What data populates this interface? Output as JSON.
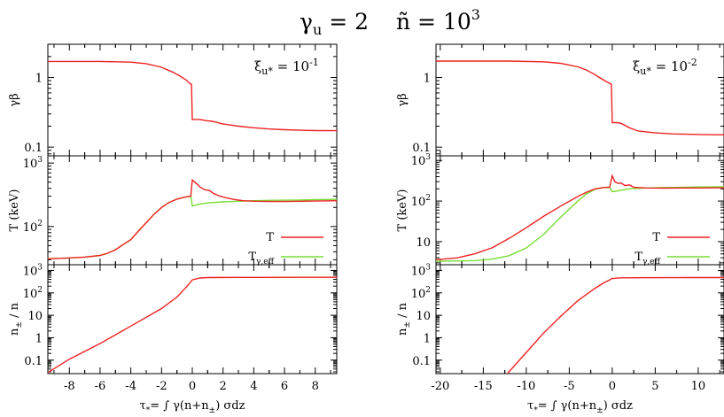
{
  "figure": {
    "title_gamma": "γ",
    "title_gamma_sub": "u",
    "title_gamma_val": " = 2",
    "title_n": "ñ",
    "title_n_val": " = 10",
    "title_n_exp": "3"
  },
  "colors": {
    "T": "#ee2222",
    "Teff": "#77dd33",
    "axis": "#000000"
  },
  "chart_data": [
    {
      "type": "line",
      "panel": "left",
      "annotation": {
        "base": "ξ",
        "sub": "u*",
        "eq": " = 10",
        "exp": "-1"
      },
      "xlim": [
        -9.4,
        9.4
      ],
      "xticks": [
        -8,
        -6,
        -4,
        -2,
        0,
        2,
        4,
        6,
        8
      ],
      "xtick_labels": [
        "-8",
        "-6",
        "-4",
        "-2",
        "0",
        "2",
        "4",
        "6",
        "8"
      ],
      "xlabel": {
        "pre": "τ",
        "pre_sub": "*",
        "mid": "= ∫ γ(n+n",
        "mid_sub": "±",
        "post": ") σdz"
      },
      "subplots": [
        {
          "ylabel": "γβ",
          "yscale": "log",
          "ylim": [
            0.075,
            3.0
          ],
          "yticks": [
            {
              "v": 1,
              "label": "1"
            },
            {
              "v": 0.1,
              "label": "0.1"
            }
          ],
          "series": [
            {
              "name": "γβ",
              "color": "#ee2222",
              "x": [
                -9.4,
                -6,
                -4,
                -3,
                -2,
                -1.3,
                -0.8,
                -0.4,
                -0.1,
                -0.05,
                0,
                0.5,
                0.9,
                1.3,
                2,
                3,
                4,
                5,
                6,
                7,
                8,
                9.4
              ],
              "y": [
                1.7,
                1.7,
                1.66,
                1.58,
                1.4,
                1.2,
                1.05,
                0.92,
                0.8,
                0.8,
                0.25,
                0.25,
                0.24,
                0.235,
                0.215,
                0.2,
                0.19,
                0.182,
                0.178,
                0.175,
                0.173,
                0.172
              ]
            }
          ]
        },
        {
          "ylabel": "T (keV)",
          "yscale": "log",
          "ylim": [
            25,
            1300
          ],
          "yticks": [
            {
              "v": 1000,
              "label": "10",
              "sup": "3"
            },
            {
              "v": 100,
              "label": "10",
              "sup": "2"
            }
          ],
          "legend": [
            {
              "label": "T",
              "color": "#ee2222"
            },
            {
              "label": "T",
              "sub": "γ,eff",
              "color": "#77dd33"
            }
          ],
          "series": [
            {
              "name": "T",
              "color": "#ee2222",
              "x": [
                -9.4,
                -8,
                -7,
                -6,
                -5.5,
                -5,
                -4.5,
                -4,
                -3.5,
                -3,
                -2.5,
                -2,
                -1.5,
                -1,
                -0.5,
                -0.1,
                0,
                0.3,
                0.5,
                0.8,
                1.1,
                1.4,
                1.8,
                2.3,
                2.8,
                3.3,
                4,
                5,
                6,
                7,
                8,
                9.4
              ],
              "y": [
                31,
                32,
                33,
                35,
                38,
                43,
                52,
                62,
                85,
                115,
                155,
                200,
                240,
                270,
                290,
                300,
                540,
                470,
                420,
                380,
                370,
                330,
                300,
                280,
                265,
                255,
                250,
                248,
                248,
                250,
                252,
                255
              ]
            },
            {
              "name": "T_γ,eff",
              "color": "#77dd33",
              "x": [
                -9.4,
                -8,
                -7,
                -6,
                -5.5,
                -5,
                -4.5,
                -4,
                -3.5,
                -3,
                -2.5,
                -2,
                -1.5,
                -1,
                -0.5,
                -0.1,
                0,
                0.5,
                1,
                2,
                3,
                4,
                5,
                6,
                7,
                8,
                9.4
              ],
              "y": [
                31,
                32,
                33,
                35,
                38,
                43,
                52,
                62,
                85,
                115,
                155,
                200,
                240,
                270,
                290,
                300,
                210,
                225,
                235,
                245,
                250,
                255,
                258,
                260,
                262,
                265,
                268
              ]
            }
          ]
        },
        {
          "ylabel": "n± / n",
          "yscale": "log",
          "ylim": [
            0.025,
            1800
          ],
          "yticks": [
            {
              "v": 1000,
              "label": "10",
              "sup": "3"
            },
            {
              "v": 100,
              "label": "10",
              "sup": "2"
            },
            {
              "v": 10,
              "label": "10"
            },
            {
              "v": 1,
              "label": "1"
            },
            {
              "v": 0.1,
              "label": "0.1"
            }
          ],
          "series": [
            {
              "name": "n±/n",
              "color": "#ee2222",
              "x": [
                -9.4,
                -8,
                -6,
                -4,
                -2,
                -1,
                -0.3,
                0,
                0.5,
                1,
                3,
                5,
                7,
                9.4
              ],
              "y": [
                0.028,
                0.11,
                0.55,
                3.3,
                20,
                65,
                210,
                380,
                460,
                480,
                490,
                492,
                493,
                495
              ]
            }
          ]
        }
      ]
    },
    {
      "type": "line",
      "panel": "right",
      "annotation": {
        "base": "ξ",
        "sub": "u*",
        "eq": " = 10",
        "exp": "-2"
      },
      "xlim": [
        -20.5,
        13
      ],
      "xticks": [
        -20,
        -15,
        -10,
        -5,
        0,
        5,
        10
      ],
      "xtick_labels": [
        "-20",
        "-15",
        "-10",
        "-5",
        "0",
        "5",
        "10"
      ],
      "xlabel": {
        "pre": "τ",
        "pre_sub": "*",
        "mid": "= ∫ γ(n+n",
        "mid_sub": "±",
        "post": ") σdz"
      },
      "subplots": [
        {
          "ylabel": "γβ",
          "yscale": "log",
          "ylim": [
            0.075,
            3.0
          ],
          "yticks": [
            {
              "v": 1,
              "label": "1"
            },
            {
              "v": 0.1,
              "label": "0.1"
            }
          ],
          "series": [
            {
              "name": "γβ",
              "color": "#ee2222",
              "x": [
                -20.5,
                -12,
                -8,
                -6,
                -4,
                -3,
                -2,
                -1.5,
                -1,
                -0.5,
                -0.1,
                0,
                0.5,
                1,
                2,
                3,
                5,
                7,
                10,
                13
              ],
              "y": [
                1.72,
                1.72,
                1.68,
                1.6,
                1.42,
                1.28,
                1.1,
                1.0,
                0.92,
                0.85,
                0.8,
                0.225,
                0.225,
                0.22,
                0.19,
                0.17,
                0.16,
                0.155,
                0.152,
                0.15
              ]
            }
          ]
        },
        {
          "ylabel": "T (keV)",
          "yscale": "log",
          "ylim": [
            2.7,
            1300
          ],
          "yticks": [
            {
              "v": 1000,
              "label": "10",
              "sup": "3"
            },
            {
              "v": 100,
              "label": "10",
              "sup": "2"
            },
            {
              "v": 10,
              "label": "10"
            }
          ],
          "legend": [
            {
              "label": "T",
              "color": "#ee2222"
            },
            {
              "label": "T",
              "sub": "γ,eff",
              "color": "#77dd33"
            }
          ],
          "series": [
            {
              "name": "T",
              "color": "#ee2222",
              "x": [
                -20.5,
                -18,
                -16,
                -14,
                -12,
                -10,
                -8,
                -6,
                -4,
                -3,
                -2,
                -1,
                -0.3,
                0,
                0.3,
                0.7,
                1,
                1.5,
                2,
                2.5,
                3,
                4,
                6,
                8,
                10,
                13
              ],
              "y": [
                3.6,
                4,
                5,
                7,
                12,
                22,
                42,
                75,
                130,
                165,
                200,
                215,
                220,
                420,
                300,
                270,
                280,
                240,
                250,
                220,
                215,
                210,
                208,
                210,
                210,
                212
              ]
            },
            {
              "name": "T_γ,eff",
              "color": "#77dd33",
              "x": [
                -20.5,
                -16,
                -14,
                -12,
                -10,
                -8,
                -6,
                -4,
                -3,
                -2,
                -1,
                -0.3,
                0,
                0.5,
                1,
                2,
                4,
                6,
                8,
                10,
                13
              ],
              "y": [
                3.3,
                3.4,
                3.7,
                4.5,
                7,
                15,
                40,
                100,
                150,
                195,
                215,
                220,
                170,
                175,
                185,
                200,
                210,
                215,
                218,
                222,
                225
              ]
            }
          ]
        },
        {
          "ylabel": "n± / n",
          "yscale": "log",
          "ylim": [
            0.025,
            1800
          ],
          "yticks": [
            {
              "v": 1000,
              "label": "10",
              "sup": "3"
            },
            {
              "v": 100,
              "label": "10",
              "sup": "2"
            },
            {
              "v": 10,
              "label": "10"
            },
            {
              "v": 1,
              "label": "1"
            },
            {
              "v": 0.1,
              "label": "0.1"
            }
          ],
          "series": [
            {
              "name": "n±/n",
              "color": "#ee2222",
              "x": [
                -12.2,
                -10,
                -8,
                -6,
                -4,
                -2,
                -1,
                -0.3,
                0,
                1,
                3,
                6,
                9,
                13
              ],
              "y": [
                0.025,
                0.22,
                1.6,
                9,
                45,
                160,
                280,
                380,
                440,
                470,
                475,
                478,
                480,
                480
              ]
            }
          ]
        }
      ]
    }
  ]
}
